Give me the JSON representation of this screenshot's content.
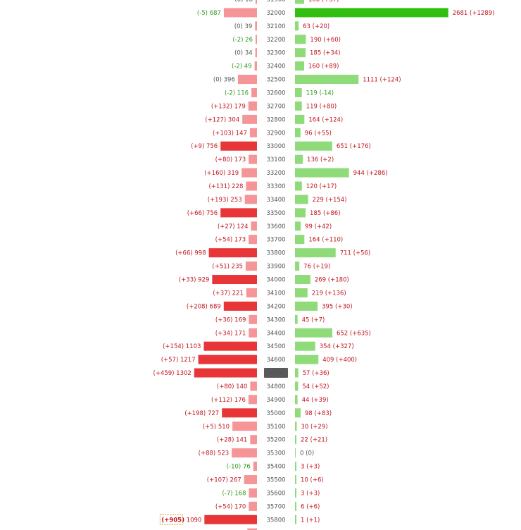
{
  "chart_data": {
    "type": "bar",
    "layout": "butterfly",
    "colors": {
      "left_normal": "#f59597",
      "left_strong": "#e83537",
      "right_normal": "#8fdb7a",
      "right_strong": "#33bf12",
      "highlight_strike_bg": "#5a5a5a",
      "change_positive": "#c0161e",
      "change_negative": "#2f9a1b",
      "change_zero": "#555555"
    },
    "rows": [
      {
        "strike": "31900",
        "left": {
          "value": 18,
          "change": "(0)"
        },
        "right": {
          "value": 160,
          "change": "(+37)"
        }
      },
      {
        "strike": "32000",
        "left": {
          "value": 687,
          "change": "(-5)"
        },
        "right": {
          "value": 2681,
          "change": "(+1289)",
          "strong": true
        }
      },
      {
        "strike": "32100",
        "left": {
          "value": 39,
          "change": "(0)"
        },
        "right": {
          "value": 63,
          "change": "(+20)"
        }
      },
      {
        "strike": "32200",
        "left": {
          "value": 26,
          "change": "(-2)"
        },
        "right": {
          "value": 190,
          "change": "(+60)"
        }
      },
      {
        "strike": "32300",
        "left": {
          "value": 34,
          "change": "(0)"
        },
        "right": {
          "value": 185,
          "change": "(+34)"
        }
      },
      {
        "strike": "32400",
        "left": {
          "value": 49,
          "change": "(-2)"
        },
        "right": {
          "value": 160,
          "change": "(+89)"
        }
      },
      {
        "strike": "32500",
        "left": {
          "value": 396,
          "change": "(0)"
        },
        "right": {
          "value": 1111,
          "change": "(+124)"
        }
      },
      {
        "strike": "32600",
        "left": {
          "value": 116,
          "change": "(-2)"
        },
        "right": {
          "value": 119,
          "change": "(-14)"
        }
      },
      {
        "strike": "32700",
        "left": {
          "value": 179,
          "change": "(+132)"
        },
        "right": {
          "value": 119,
          "change": "(+80)"
        }
      },
      {
        "strike": "32800",
        "left": {
          "value": 304,
          "change": "(+127)"
        },
        "right": {
          "value": 164,
          "change": "(+124)"
        }
      },
      {
        "strike": "32900",
        "left": {
          "value": 147,
          "change": "(+103)"
        },
        "right": {
          "value": 96,
          "change": "(+55)"
        }
      },
      {
        "strike": "33000",
        "left": {
          "value": 756,
          "change": "(+9)",
          "strong": true
        },
        "right": {
          "value": 651,
          "change": "(+176)"
        }
      },
      {
        "strike": "33100",
        "left": {
          "value": 173,
          "change": "(+80)"
        },
        "right": {
          "value": 136,
          "change": "(+2)"
        }
      },
      {
        "strike": "33200",
        "left": {
          "value": 319,
          "change": "(+160)"
        },
        "right": {
          "value": 944,
          "change": "(+286)"
        }
      },
      {
        "strike": "33300",
        "left": {
          "value": 228,
          "change": "(+131)"
        },
        "right": {
          "value": 120,
          "change": "(+17)"
        }
      },
      {
        "strike": "33400",
        "left": {
          "value": 253,
          "change": "(+193)"
        },
        "right": {
          "value": 229,
          "change": "(+154)"
        }
      },
      {
        "strike": "33500",
        "left": {
          "value": 756,
          "change": "(+66)",
          "strong": true
        },
        "right": {
          "value": 185,
          "change": "(+86)"
        }
      },
      {
        "strike": "33600",
        "left": {
          "value": 124,
          "change": "(+27)"
        },
        "right": {
          "value": 99,
          "change": "(+42)"
        }
      },
      {
        "strike": "33700",
        "left": {
          "value": 173,
          "change": "(+54)"
        },
        "right": {
          "value": 164,
          "change": "(+110)"
        }
      },
      {
        "strike": "33800",
        "left": {
          "value": 998,
          "change": "(+66)",
          "strong": true
        },
        "right": {
          "value": 711,
          "change": "(+56)"
        }
      },
      {
        "strike": "33900",
        "left": {
          "value": 235,
          "change": "(+51)"
        },
        "right": {
          "value": 76,
          "change": "(+19)"
        }
      },
      {
        "strike": "34000",
        "left": {
          "value": 929,
          "change": "(+33)",
          "strong": true
        },
        "right": {
          "value": 269,
          "change": "(+180)"
        }
      },
      {
        "strike": "34100",
        "left": {
          "value": 221,
          "change": "(+37)"
        },
        "right": {
          "value": 219,
          "change": "(+136)"
        }
      },
      {
        "strike": "34200",
        "left": {
          "value": 689,
          "change": "(+208)",
          "strong": true
        },
        "right": {
          "value": 395,
          "change": "(+30)"
        }
      },
      {
        "strike": "34300",
        "left": {
          "value": 169,
          "change": "(+36)"
        },
        "right": {
          "value": 45,
          "change": "(+7)"
        }
      },
      {
        "strike": "34400",
        "left": {
          "value": 171,
          "change": "(+34)"
        },
        "right": {
          "value": 652,
          "change": "(+635)"
        }
      },
      {
        "strike": "34500",
        "left": {
          "value": 1103,
          "change": "(+154)",
          "strong": true
        },
        "right": {
          "value": 354,
          "change": "(+327)"
        }
      },
      {
        "strike": "34600",
        "left": {
          "value": 1217,
          "change": "(+57)",
          "strong": true
        },
        "right": {
          "value": 409,
          "change": "(+400)"
        }
      },
      {
        "strike": "34700",
        "highlight": true,
        "left": {
          "value": 1302,
          "change": "(+459)",
          "strong": true
        },
        "right": {
          "value": 57,
          "change": "(+36)"
        }
      },
      {
        "strike": "34800",
        "left": {
          "value": 140,
          "change": "(+80)"
        },
        "right": {
          "value": 54,
          "change": "(+52)"
        }
      },
      {
        "strike": "34900",
        "left": {
          "value": 176,
          "change": "(+112)"
        },
        "right": {
          "value": 44,
          "change": "(+39)"
        }
      },
      {
        "strike": "35000",
        "left": {
          "value": 727,
          "change": "(+198)",
          "strong": true
        },
        "right": {
          "value": 98,
          "change": "(+83)"
        }
      },
      {
        "strike": "35100",
        "left": {
          "value": 510,
          "change": "(+5)"
        },
        "right": {
          "value": 30,
          "change": "(+29)"
        }
      },
      {
        "strike": "35200",
        "left": {
          "value": 141,
          "change": "(+28)"
        },
        "right": {
          "value": 22,
          "change": "(+21)"
        }
      },
      {
        "strike": "35300",
        "left": {
          "value": 523,
          "change": "(+88)"
        },
        "right": {
          "value": 0,
          "change": "(0)"
        }
      },
      {
        "strike": "35400",
        "left": {
          "value": 76,
          "change": "(-10)"
        },
        "right": {
          "value": 3,
          "change": "(+3)"
        }
      },
      {
        "strike": "35500",
        "left": {
          "value": 267,
          "change": "(+107)"
        },
        "right": {
          "value": 10,
          "change": "(+6)"
        }
      },
      {
        "strike": "35600",
        "left": {
          "value": 168,
          "change": "(-7)"
        },
        "right": {
          "value": 3,
          "change": "(+3)"
        }
      },
      {
        "strike": "35700",
        "left": {
          "value": 170,
          "change": "(+54)"
        },
        "right": {
          "value": 6,
          "change": "(+6)"
        }
      },
      {
        "strike": "35800",
        "left": {
          "value": 1090,
          "change": "(+905)",
          "strong": true,
          "change_boxed": true
        },
        "right": {
          "value": 1,
          "change": "(+1)"
        }
      },
      {
        "strike": "",
        "left": {
          "value": 200,
          "change": ""
        },
        "right": {
          "value": 0,
          "change": ""
        }
      }
    ]
  }
}
